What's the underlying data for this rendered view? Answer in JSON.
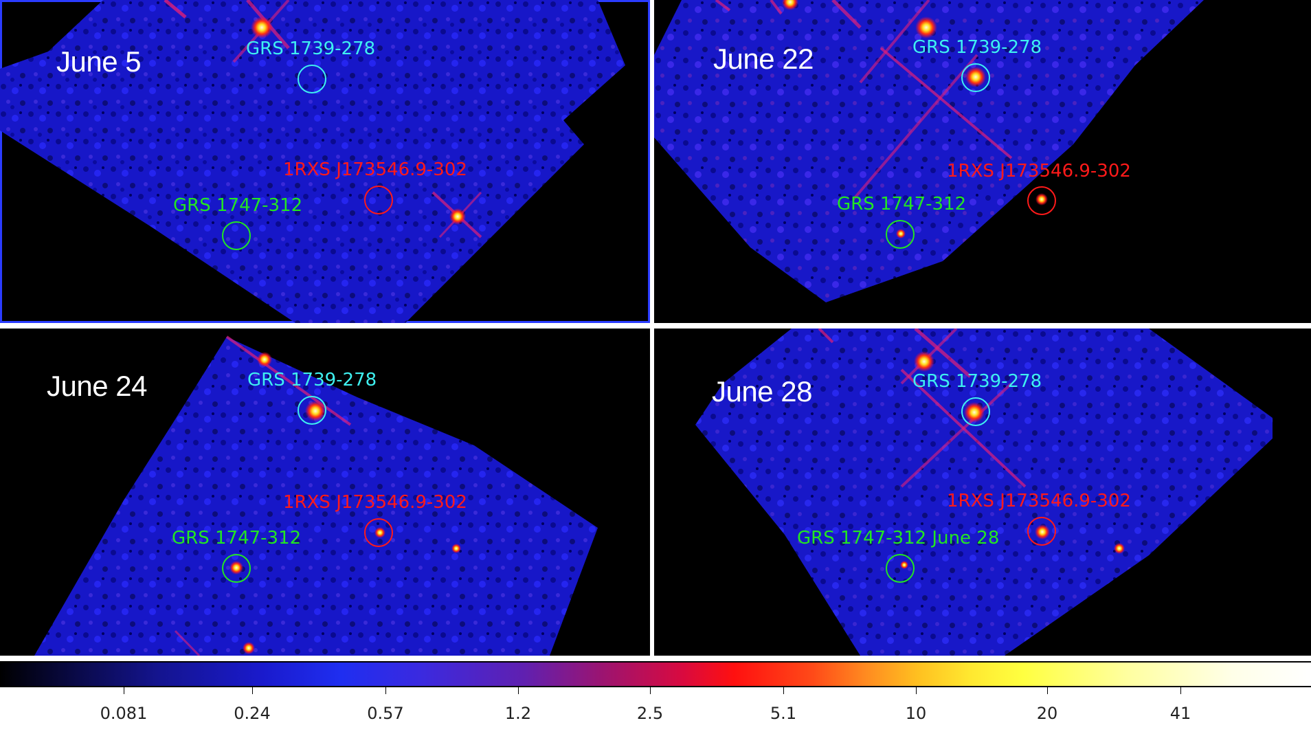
{
  "panels": [
    {
      "date": "June 5",
      "labels": {
        "grs1739": "GRS 1739-278",
        "rxs": "1RXS J173546.9-302",
        "grs1747": "GRS 1747-312"
      }
    },
    {
      "date": "June 22",
      "labels": {
        "grs1739": "GRS 1739-278",
        "rxs": "1RXS J173546.9-302",
        "grs1747": "GRS 1747-312"
      }
    },
    {
      "date": "June 24",
      "labels": {
        "grs1739": "GRS 1739-278",
        "rxs": "1RXS J173546.9-302",
        "grs1747": "GRS 1747-312"
      }
    },
    {
      "date": "June 28",
      "labels": {
        "grs1739": "GRS 1739-278",
        "rxs": "1RXS J173546.9-302",
        "grs1747": "GRS 1747-312 June 28"
      }
    }
  ],
  "colors": {
    "grs1739": "#3ff0f0",
    "rxs": "#ff1a1a",
    "grs1747": "#22e622",
    "sky": "#1b1bd8",
    "background": "#000000"
  },
  "colorbar": {
    "ticks": [
      "0.081",
      "0.24",
      "0.57",
      "1.2",
      "2.5",
      "5.1",
      "10",
      "20",
      "41"
    ],
    "scale": "log",
    "colormap": "black-blue-red-yellow-white"
  }
}
